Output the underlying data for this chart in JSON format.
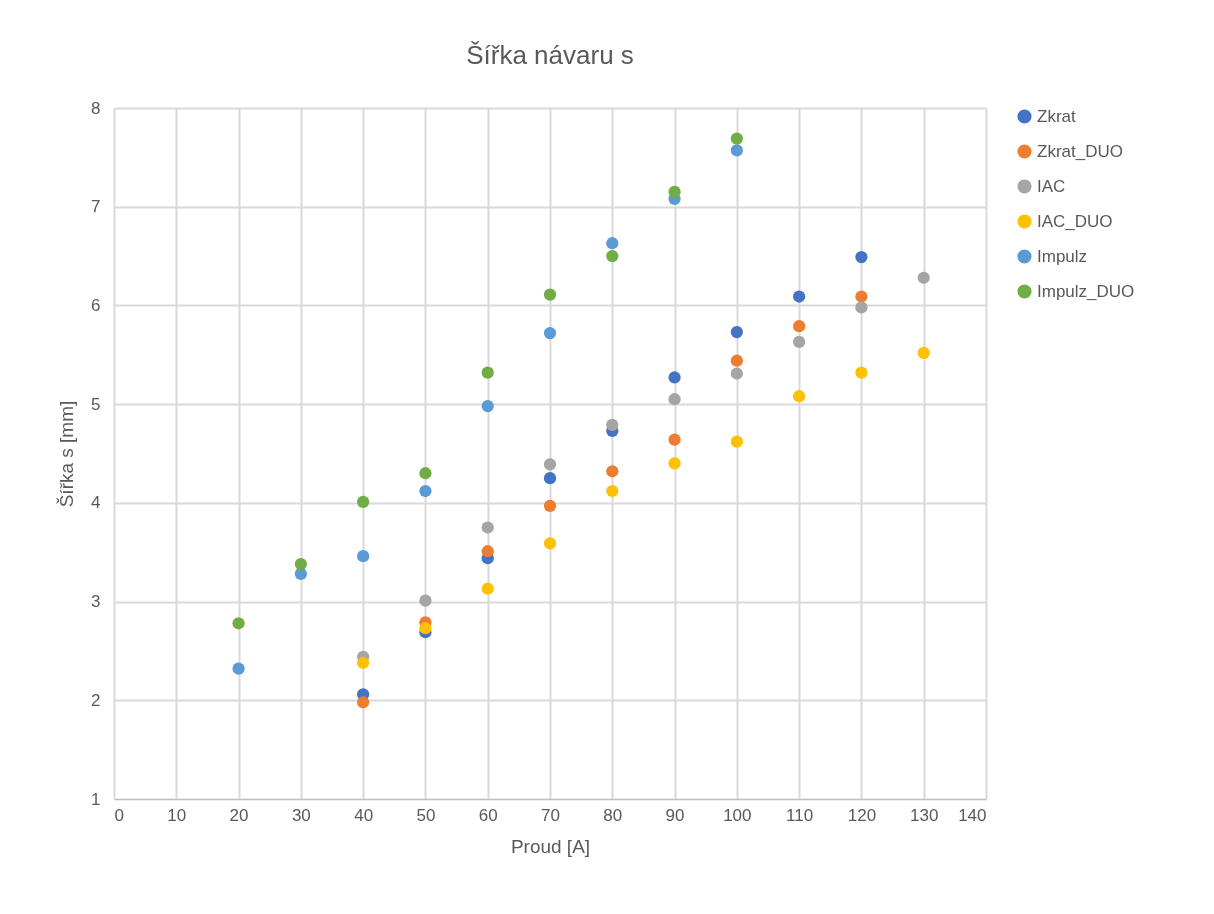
{
  "chart_data": {
    "type": "scatter",
    "title": "Šířka návaru s",
    "xlabel": "Proud [A]",
    "ylabel": "Šířka s [mm]",
    "xlim": [
      0,
      140
    ],
    "xticks": [
      0,
      10,
      20,
      30,
      40,
      50,
      60,
      70,
      80,
      90,
      100,
      110,
      120,
      130,
      140
    ],
    "ylim": [
      1,
      8
    ],
    "yticks": [
      1,
      2,
      3,
      4,
      5,
      6,
      7,
      8
    ],
    "grid": true,
    "legend": "right",
    "marker": "circle",
    "series": [
      {
        "name": "Zkrat",
        "color": "#4472c4",
        "x": [
          40,
          50,
          60,
          70,
          80,
          90,
          100,
          110,
          120
        ],
        "values": [
          2.06,
          2.69,
          3.44,
          4.25,
          4.73,
          5.27,
          5.73,
          6.09,
          6.49
        ]
      },
      {
        "name": "Zkrat_DUO",
        "color": "#ed7d31",
        "x": [
          40,
          50,
          60,
          70,
          80,
          90,
          100,
          110,
          120
        ],
        "values": [
          1.98,
          2.79,
          3.51,
          3.97,
          4.32,
          4.64,
          5.44,
          5.79,
          6.09
        ]
      },
      {
        "name": "IAC",
        "color": "#a5a5a5",
        "x": [
          40,
          50,
          60,
          70,
          80,
          90,
          100,
          110,
          120,
          130
        ],
        "values": [
          2.44,
          3.01,
          3.75,
          4.39,
          4.79,
          5.05,
          5.31,
          5.63,
          5.98,
          6.28
        ]
      },
      {
        "name": "IAC_DUO",
        "color": "#ffc000",
        "x": [
          40,
          50,
          60,
          70,
          80,
          90,
          100,
          110,
          120,
          130
        ],
        "values": [
          2.38,
          2.73,
          3.13,
          3.59,
          4.12,
          4.4,
          4.62,
          5.08,
          5.32,
          5.52
        ]
      },
      {
        "name": "Impulz",
        "color": "#5b9bd5",
        "x": [
          20,
          30,
          40,
          50,
          60,
          70,
          80,
          90,
          100
        ],
        "values": [
          2.32,
          3.28,
          3.46,
          4.12,
          4.98,
          5.72,
          6.63,
          7.08,
          7.57
        ]
      },
      {
        "name": "Impulz_DUO",
        "color": "#70ad47",
        "x": [
          20,
          30,
          40,
          50,
          60,
          70,
          80,
          90,
          100
        ],
        "values": [
          2.78,
          3.38,
          4.01,
          4.3,
          5.32,
          6.11,
          6.5,
          7.15,
          7.69
        ]
      }
    ]
  }
}
